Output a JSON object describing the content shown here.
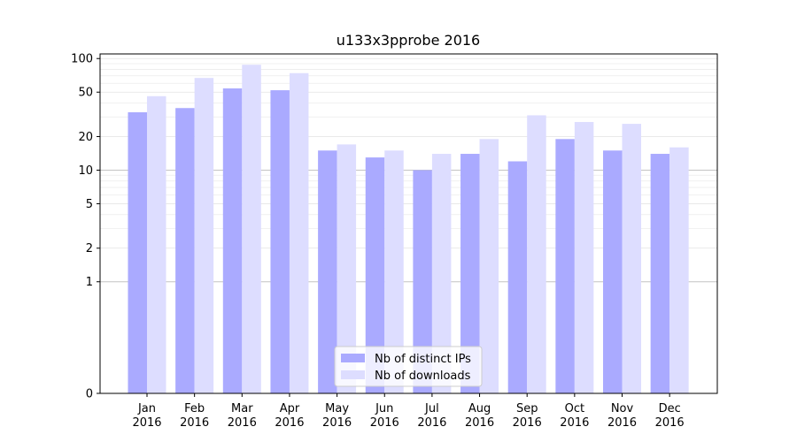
{
  "chart_data": {
    "type": "bar",
    "title": "u133x3pprobe 2016",
    "xlabel": "",
    "ylabel": "",
    "yscale": "symlog",
    "ylim": [
      0,
      110
    ],
    "yticks": [
      0,
      1,
      2,
      5,
      10,
      20,
      50,
      100
    ],
    "ytick_labels": [
      "0",
      "1",
      "2",
      "5",
      "10",
      "20",
      "50",
      "100"
    ],
    "grid": "horizontal",
    "legend_position": "bottom-center",
    "categories": [
      {
        "month": "Jan",
        "year": "2016"
      },
      {
        "month": "Feb",
        "year": "2016"
      },
      {
        "month": "Mar",
        "year": "2016"
      },
      {
        "month": "Apr",
        "year": "2016"
      },
      {
        "month": "May",
        "year": "2016"
      },
      {
        "month": "Jun",
        "year": "2016"
      },
      {
        "month": "Jul",
        "year": "2016"
      },
      {
        "month": "Aug",
        "year": "2016"
      },
      {
        "month": "Sep",
        "year": "2016"
      },
      {
        "month": "Oct",
        "year": "2016"
      },
      {
        "month": "Nov",
        "year": "2016"
      },
      {
        "month": "Dec",
        "year": "2016"
      }
    ],
    "series": [
      {
        "name": "Nb of distinct IPs",
        "color": "#aaaaff",
        "values": [
          33,
          36,
          54,
          52,
          15,
          13,
          10,
          14,
          12,
          19,
          15,
          14
        ]
      },
      {
        "name": "Nb of downloads",
        "color": "#ddddff",
        "values": [
          46,
          67,
          88,
          74,
          17,
          15,
          14,
          19,
          31,
          27,
          26,
          16
        ]
      }
    ]
  }
}
